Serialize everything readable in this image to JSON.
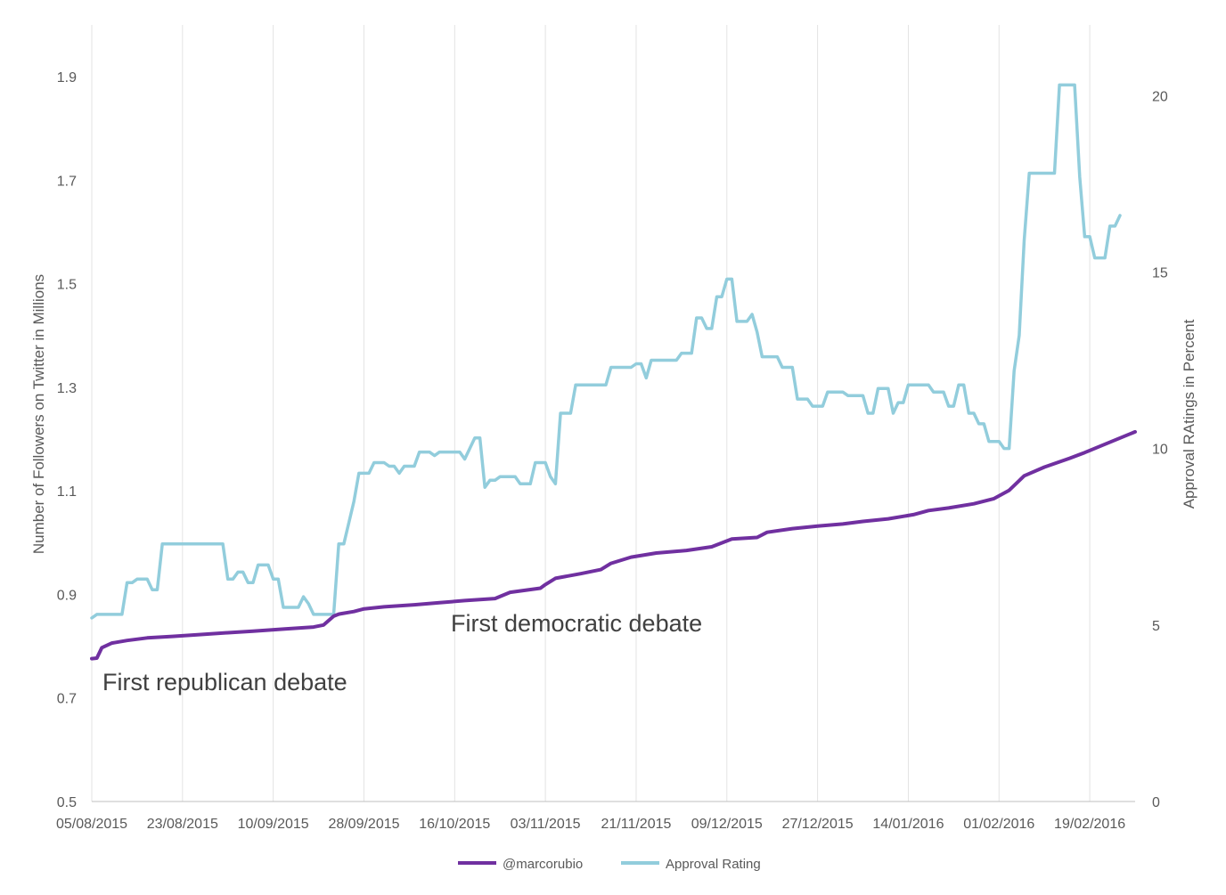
{
  "chart_data": {
    "type": "line",
    "x_label_ticks": [
      "05/08/2015",
      "23/08/2015",
      "10/09/2015",
      "28/09/2015",
      "16/10/2015",
      "03/11/2015",
      "21/11/2015",
      "09/12/2015",
      "27/12/2015",
      "14/01/2016",
      "01/02/2016",
      "19/02/2016"
    ],
    "x_range": [
      "2015-08-05",
      "2016-02-28"
    ],
    "grid": "vertical",
    "legend_position": "bottom",
    "y_left": {
      "label": "Number of Followers on Twitter in Millions",
      "ticks": [
        "0.5",
        "0.7",
        "0.9",
        "1.1",
        "1.3",
        "1.5",
        "1.7",
        "1.9"
      ],
      "range": [
        0.5,
        2.0
      ]
    },
    "y_right": {
      "label": "Approval RAtings in Percent",
      "ticks": [
        "0",
        "5",
        "10",
        "15",
        "20"
      ],
      "range": [
        0,
        22
      ]
    },
    "series": [
      {
        "name": "@marcorubio",
        "axis": "left",
        "color": "#7030a0",
        "points": [
          [
            "2015-08-05",
            0.776
          ],
          [
            "2015-08-06",
            0.777
          ],
          [
            "2015-08-07",
            0.797
          ],
          [
            "2015-08-09",
            0.806
          ],
          [
            "2015-08-12",
            0.811
          ],
          [
            "2015-08-16",
            0.816
          ],
          [
            "2015-08-21",
            0.819
          ],
          [
            "2015-08-26",
            0.822
          ],
          [
            "2015-09-01",
            0.826
          ],
          [
            "2015-09-06",
            0.829
          ],
          [
            "2015-09-12",
            0.833
          ],
          [
            "2015-09-18",
            0.837
          ],
          [
            "2015-09-20",
            0.841
          ],
          [
            "2015-09-22",
            0.858
          ],
          [
            "2015-09-23",
            0.862
          ],
          [
            "2015-09-26",
            0.867
          ],
          [
            "2015-09-28",
            0.872
          ],
          [
            "2015-10-02",
            0.876
          ],
          [
            "2015-10-08",
            0.88
          ],
          [
            "2015-10-13",
            0.884
          ],
          [
            "2015-10-18",
            0.888
          ],
          [
            "2015-10-24",
            0.892
          ],
          [
            "2015-10-27",
            0.904
          ],
          [
            "2015-11-02",
            0.912
          ],
          [
            "2015-11-03",
            0.919
          ],
          [
            "2015-11-05",
            0.931
          ],
          [
            "2015-11-10",
            0.94
          ],
          [
            "2015-11-14",
            0.948
          ],
          [
            "2015-11-16",
            0.96
          ],
          [
            "2015-11-20",
            0.972
          ],
          [
            "2015-11-25",
            0.98
          ],
          [
            "2015-12-01",
            0.985
          ],
          [
            "2015-12-06",
            0.992
          ],
          [
            "2015-12-10",
            1.007
          ],
          [
            "2015-12-15",
            1.01
          ],
          [
            "2015-12-17",
            1.02
          ],
          [
            "2015-12-22",
            1.027
          ],
          [
            "2015-12-27",
            1.032
          ],
          [
            "2016-01-01",
            1.036
          ],
          [
            "2016-01-05",
            1.041
          ],
          [
            "2016-01-10",
            1.046
          ],
          [
            "2016-01-15",
            1.054
          ],
          [
            "2016-01-18",
            1.062
          ],
          [
            "2016-01-22",
            1.067
          ],
          [
            "2016-01-27",
            1.075
          ],
          [
            "2016-01-31",
            1.085
          ],
          [
            "2016-02-03",
            1.101
          ],
          [
            "2016-02-06",
            1.129
          ],
          [
            "2016-02-10",
            1.146
          ],
          [
            "2016-02-15",
            1.163
          ],
          [
            "2016-02-18",
            1.174
          ],
          [
            "2016-02-21",
            1.186
          ],
          [
            "2016-02-24",
            1.198
          ],
          [
            "2016-02-28",
            1.214
          ]
        ]
      },
      {
        "name": "Approval Rating",
        "axis": "right",
        "color": "#92cddc",
        "points": [
          [
            "2015-08-05",
            5.2
          ],
          [
            "2015-08-06",
            5.3
          ],
          [
            "2015-08-08",
            5.3
          ],
          [
            "2015-08-11",
            5.3
          ],
          [
            "2015-08-12",
            6.2
          ],
          [
            "2015-08-13",
            6.2
          ],
          [
            "2015-08-14",
            6.3
          ],
          [
            "2015-08-16",
            6.3
          ],
          [
            "2015-08-17",
            6.0
          ],
          [
            "2015-08-18",
            6.0
          ],
          [
            "2015-08-19",
            7.3
          ],
          [
            "2015-08-30",
            7.3
          ],
          [
            "2015-08-31",
            7.3
          ],
          [
            "2015-09-01",
            6.3
          ],
          [
            "2015-09-02",
            6.3
          ],
          [
            "2015-09-03",
            6.5
          ],
          [
            "2015-09-04",
            6.5
          ],
          [
            "2015-09-05",
            6.2
          ],
          [
            "2015-09-06",
            6.2
          ],
          [
            "2015-09-07",
            6.7
          ],
          [
            "2015-09-09",
            6.7
          ],
          [
            "2015-09-10",
            6.3
          ],
          [
            "2015-09-11",
            6.3
          ],
          [
            "2015-09-12",
            5.5
          ],
          [
            "2015-09-15",
            5.5
          ],
          [
            "2015-09-16",
            5.8
          ],
          [
            "2015-09-17",
            5.6
          ],
          [
            "2015-09-18",
            5.3
          ],
          [
            "2015-09-21",
            5.3
          ],
          [
            "2015-09-22",
            5.3
          ],
          [
            "2015-09-23",
            7.3
          ],
          [
            "2015-09-24",
            7.3
          ],
          [
            "2015-09-26",
            8.5
          ],
          [
            "2015-09-27",
            9.3
          ],
          [
            "2015-09-29",
            9.3
          ],
          [
            "2015-09-30",
            9.6
          ],
          [
            "2015-10-01",
            9.6
          ],
          [
            "2015-10-02",
            9.6
          ],
          [
            "2015-10-03",
            9.5
          ],
          [
            "2015-10-04",
            9.5
          ],
          [
            "2015-10-05",
            9.3
          ],
          [
            "2015-10-06",
            9.5
          ],
          [
            "2015-10-08",
            9.5
          ],
          [
            "2015-10-09",
            9.9
          ],
          [
            "2015-10-11",
            9.9
          ],
          [
            "2015-10-12",
            9.8
          ],
          [
            "2015-10-13",
            9.9
          ],
          [
            "2015-10-17",
            9.9
          ],
          [
            "2015-10-18",
            9.7
          ],
          [
            "2015-10-20",
            10.3
          ],
          [
            "2015-10-21",
            10.3
          ],
          [
            "2015-10-22",
            8.9
          ],
          [
            "2015-10-23",
            9.1
          ],
          [
            "2015-10-24",
            9.1
          ],
          [
            "2015-10-25",
            9.2
          ],
          [
            "2015-10-28",
            9.2
          ],
          [
            "2015-10-29",
            9.0
          ],
          [
            "2015-10-31",
            9.0
          ],
          [
            "2015-11-01",
            9.6
          ],
          [
            "2015-11-03",
            9.6
          ],
          [
            "2015-11-04",
            9.2
          ],
          [
            "2015-11-05",
            9.0
          ],
          [
            "2015-11-06",
            11.0
          ],
          [
            "2015-11-07",
            11.0
          ],
          [
            "2015-11-08",
            11.0
          ],
          [
            "2015-11-09",
            11.8
          ],
          [
            "2015-11-14",
            11.8
          ],
          [
            "2015-11-15",
            11.8
          ],
          [
            "2015-11-16",
            12.3
          ],
          [
            "2015-11-20",
            12.3
          ],
          [
            "2015-11-21",
            12.4
          ],
          [
            "2015-11-22",
            12.4
          ],
          [
            "2015-11-23",
            12.0
          ],
          [
            "2015-11-24",
            12.5
          ],
          [
            "2015-11-29",
            12.5
          ],
          [
            "2015-11-30",
            12.7
          ],
          [
            "2015-12-02",
            12.7
          ],
          [
            "2015-12-03",
            13.7
          ],
          [
            "2015-12-04",
            13.7
          ],
          [
            "2015-12-05",
            13.4
          ],
          [
            "2015-12-06",
            13.4
          ],
          [
            "2015-12-07",
            14.3
          ],
          [
            "2015-12-08",
            14.3
          ],
          [
            "2015-12-09",
            14.8
          ],
          [
            "2015-12-10",
            14.8
          ],
          [
            "2015-12-11",
            13.6
          ],
          [
            "2015-12-12",
            13.6
          ],
          [
            "2015-12-13",
            13.6
          ],
          [
            "2015-12-14",
            13.8
          ],
          [
            "2015-12-15",
            13.3
          ],
          [
            "2015-12-16",
            12.6
          ],
          [
            "2015-12-18",
            12.6
          ],
          [
            "2015-12-19",
            12.6
          ],
          [
            "2015-12-20",
            12.3
          ],
          [
            "2015-12-22",
            12.3
          ],
          [
            "2015-12-23",
            11.4
          ],
          [
            "2015-12-24",
            11.4
          ],
          [
            "2015-12-25",
            11.4
          ],
          [
            "2015-12-26",
            11.2
          ],
          [
            "2015-12-28",
            11.2
          ],
          [
            "2015-12-29",
            11.6
          ],
          [
            "2015-12-30",
            11.6
          ],
          [
            "2016-01-01",
            11.6
          ],
          [
            "2016-01-02",
            11.5
          ],
          [
            "2016-01-05",
            11.5
          ],
          [
            "2016-01-06",
            11.0
          ],
          [
            "2016-01-07",
            11.0
          ],
          [
            "2016-01-08",
            11.7
          ],
          [
            "2016-01-10",
            11.7
          ],
          [
            "2016-01-11",
            11.0
          ],
          [
            "2016-01-12",
            11.3
          ],
          [
            "2016-01-13",
            11.3
          ],
          [
            "2016-01-14",
            11.8
          ],
          [
            "2016-01-18",
            11.8
          ],
          [
            "2016-01-19",
            11.6
          ],
          [
            "2016-01-21",
            11.6
          ],
          [
            "2016-01-22",
            11.2
          ],
          [
            "2016-01-23",
            11.2
          ],
          [
            "2016-01-24",
            11.8
          ],
          [
            "2016-01-25",
            11.8
          ],
          [
            "2016-01-26",
            11.0
          ],
          [
            "2016-01-27",
            11.0
          ],
          [
            "2016-01-28",
            10.7
          ],
          [
            "2016-01-29",
            10.7
          ],
          [
            "2016-01-30",
            10.2
          ],
          [
            "2016-02-01",
            10.2
          ],
          [
            "2016-02-02",
            10.0
          ],
          [
            "2016-02-03",
            10.0
          ],
          [
            "2016-02-04",
            12.2
          ],
          [
            "2016-02-05",
            13.2
          ],
          [
            "2016-02-06",
            15.9
          ],
          [
            "2016-02-07",
            17.8
          ],
          [
            "2016-02-12",
            17.8
          ],
          [
            "2016-02-13",
            20.3
          ],
          [
            "2016-02-16",
            20.3
          ],
          [
            "2016-02-17",
            17.7
          ],
          [
            "2016-02-18",
            16.0
          ],
          [
            "2016-02-19",
            16.0
          ],
          [
            "2016-02-20",
            15.4
          ],
          [
            "2016-02-22",
            15.4
          ],
          [
            "2016-02-23",
            16.3
          ],
          [
            "2016-02-24",
            16.3
          ],
          [
            "2016-02-25",
            16.6
          ]
        ]
      }
    ],
    "annotations": [
      {
        "text": "First republican debate",
        "date": "2015-08-06"
      },
      {
        "text": "First democratic debate",
        "date": "2015-10-13"
      }
    ]
  }
}
